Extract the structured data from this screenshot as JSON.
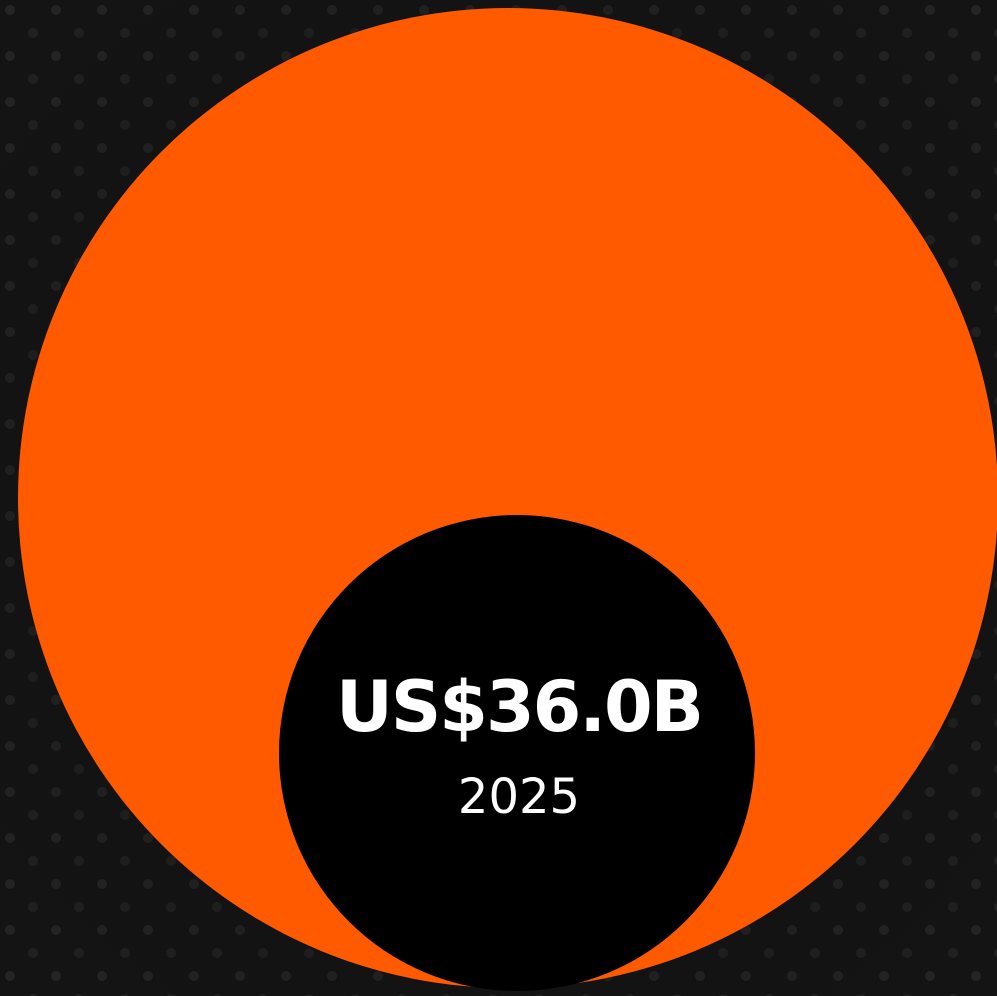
{
  "figure": {
    "value_label": "US$36.0B",
    "year": "2025"
  }
}
